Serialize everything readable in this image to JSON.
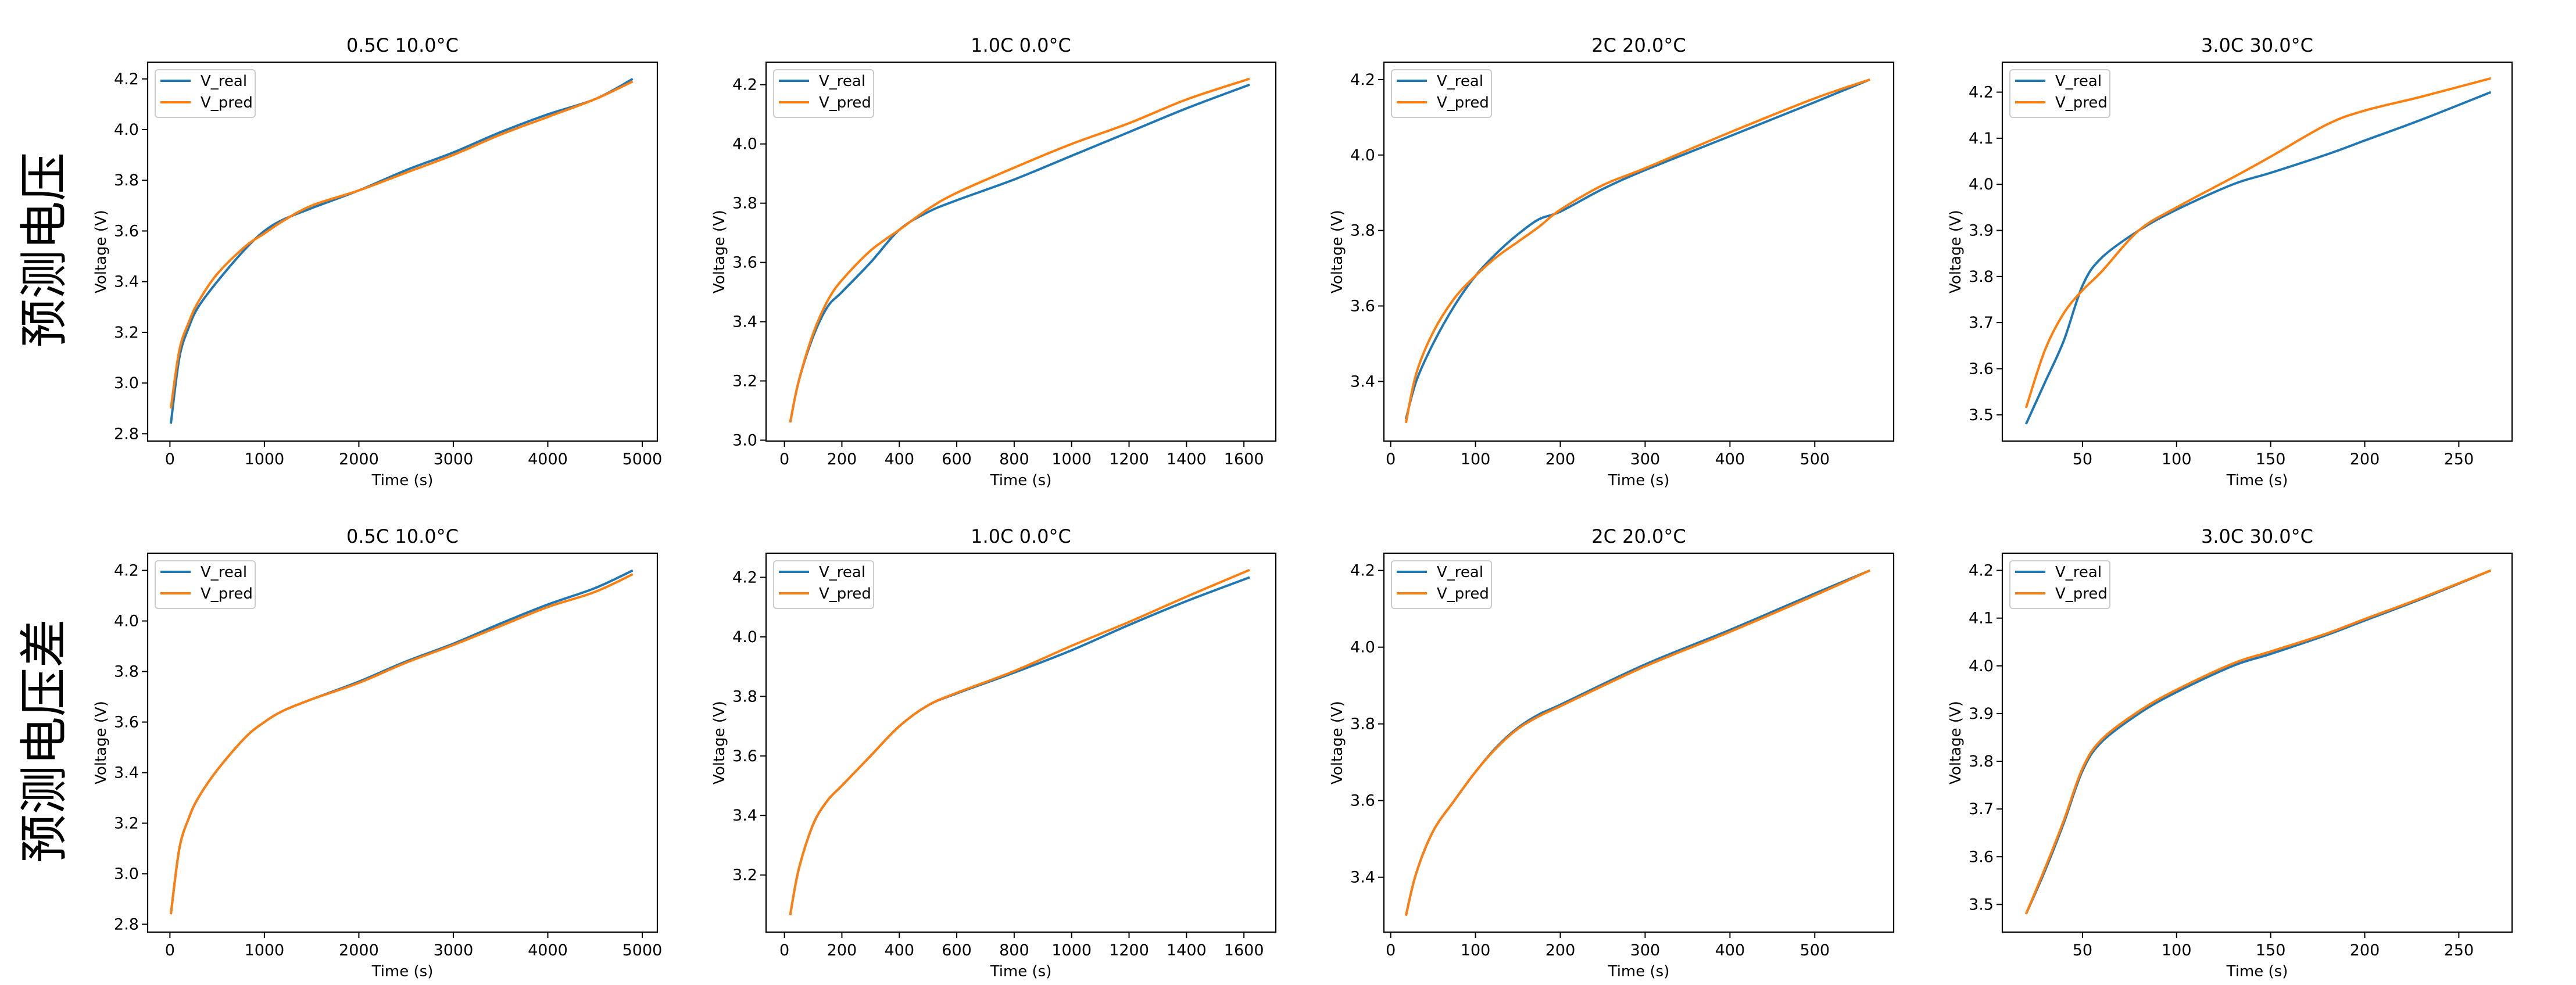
{
  "row_labels": [
    "预测电压",
    "预测电压差"
  ],
  "colors": {
    "V_real": "#1f77b4",
    "V_pred": "#ff7f0e"
  },
  "chart_data": [
    {
      "type": "line",
      "title": "0.5C 10.0°C",
      "xlabel": "Time (s)",
      "ylabel": "Voltage (V)",
      "xlim": [
        -236,
        5160
      ],
      "ylim": [
        2.771,
        4.266
      ],
      "xticks": [
        0,
        1000,
        2000,
        3000,
        4000,
        5000
      ],
      "yticks": [
        "2.8",
        "3.0",
        "3.2",
        "3.4",
        "3.6",
        "3.8",
        "4.0",
        "4.2"
      ],
      "grid": false,
      "legend": "top-left",
      "series": [
        {
          "name": "V_real",
          "x": [
            10,
            100,
            200,
            300,
            500,
            800,
            1000,
            1200,
            1500,
            2000,
            2500,
            3000,
            3500,
            4000,
            4500,
            4900
          ],
          "y": [
            2.84,
            3.1,
            3.22,
            3.3,
            3.4,
            3.53,
            3.6,
            3.645,
            3.69,
            3.76,
            3.84,
            3.91,
            3.99,
            4.06,
            4.12,
            4.2
          ]
        },
        {
          "name": "V_pred",
          "x": [
            10,
            100,
            200,
            300,
            500,
            800,
            1000,
            1200,
            1500,
            2000,
            2500,
            3000,
            3500,
            4000,
            4500,
            4900
          ],
          "y": [
            2.9,
            3.13,
            3.24,
            3.32,
            3.43,
            3.54,
            3.59,
            3.64,
            3.7,
            3.76,
            3.83,
            3.9,
            3.98,
            4.05,
            4.12,
            4.19
          ]
        }
      ]
    },
    {
      "type": "line",
      "title": "1.0C 0.0°C",
      "xlabel": "Time (s)",
      "ylabel": "Voltage (V)",
      "xlim": [
        -64,
        1711
      ],
      "ylim": [
        2.997,
        4.276
      ],
      "xticks": [
        0,
        200,
        400,
        600,
        800,
        1000,
        1200,
        1400,
        1600
      ],
      "yticks": [
        "3.0",
        "3.2",
        "3.4",
        "3.6",
        "3.8",
        "4.0",
        "4.2"
      ],
      "grid": false,
      "legend": "top-left",
      "series": [
        {
          "name": "V_real",
          "x": [
            20,
            50,
            100,
            150,
            200,
            300,
            400,
            500,
            600,
            800,
            1000,
            1200,
            1400,
            1620
          ],
          "y": [
            3.06,
            3.2,
            3.35,
            3.45,
            3.5,
            3.6,
            3.71,
            3.77,
            3.81,
            3.88,
            3.96,
            4.04,
            4.12,
            4.2
          ]
        },
        {
          "name": "V_pred",
          "x": [
            20,
            50,
            100,
            150,
            200,
            300,
            400,
            500,
            600,
            800,
            1000,
            1200,
            1400,
            1620
          ],
          "y": [
            3.06,
            3.2,
            3.36,
            3.47,
            3.54,
            3.64,
            3.71,
            3.78,
            3.835,
            3.92,
            4.0,
            4.07,
            4.15,
            4.22
          ]
        }
      ]
    },
    {
      "type": "line",
      "title": "2C 20.0°C",
      "xlabel": "Time (s)",
      "ylabel": "Voltage (V)",
      "xlim": [
        -8,
        593
      ],
      "ylim": [
        3.242,
        4.246
      ],
      "xticks": [
        0,
        100,
        200,
        300,
        400,
        500
      ],
      "yticks": [
        "3.4",
        "3.6",
        "3.8",
        "4.0",
        "4.2"
      ],
      "grid": false,
      "legend": "top-left",
      "series": [
        {
          "name": "V_real",
          "x": [
            18,
            30,
            50,
            75,
            100,
            125,
            150,
            175,
            200,
            250,
            300,
            400,
            500,
            565
          ],
          "y": [
            3.3,
            3.4,
            3.5,
            3.6,
            3.68,
            3.74,
            3.79,
            3.83,
            3.85,
            3.91,
            3.96,
            4.05,
            4.14,
            4.2
          ]
        },
        {
          "name": "V_pred",
          "x": [
            18,
            30,
            50,
            75,
            100,
            125,
            150,
            175,
            200,
            250,
            300,
            400,
            500,
            565
          ],
          "y": [
            3.29,
            3.42,
            3.53,
            3.62,
            3.68,
            3.73,
            3.77,
            3.81,
            3.855,
            3.92,
            3.965,
            4.06,
            4.15,
            4.2
          ]
        }
      ]
    },
    {
      "type": "line",
      "title": "3.0C 30.0°C",
      "xlabel": "Time (s)",
      "ylabel": "Voltage (V)",
      "xlim": [
        7.4,
        278.3
      ],
      "ylim": [
        3.443,
        4.265
      ],
      "xticks": [
        50,
        100,
        150,
        200,
        250
      ],
      "yticks": [
        "3.5",
        "3.6",
        "3.7",
        "3.8",
        "3.9",
        "4.0",
        "4.1",
        "4.2"
      ],
      "grid": false,
      "legend": "top-left",
      "series": [
        {
          "name": "V_real",
          "x": [
            20,
            30,
            40,
            50,
            60,
            80,
            100,
            130,
            150,
            180,
            200,
            230,
            267
          ],
          "y": [
            3.48,
            3.57,
            3.66,
            3.78,
            3.84,
            3.9,
            3.945,
            4.0,
            4.025,
            4.065,
            4.095,
            4.14,
            4.2
          ]
        },
        {
          "name": "V_pred",
          "x": [
            20,
            30,
            40,
            50,
            60,
            80,
            100,
            130,
            150,
            180,
            200,
            230,
            267
          ],
          "y": [
            3.515,
            3.64,
            3.72,
            3.77,
            3.81,
            3.9,
            3.95,
            4.015,
            4.06,
            4.13,
            4.16,
            4.19,
            4.23
          ]
        }
      ]
    },
    {
      "type": "line",
      "title": "0.5C 10.0°C",
      "xlabel": "Time (s)",
      "ylabel": "Voltage (V)",
      "xlim": [
        -236,
        5160
      ],
      "ylim": [
        2.769,
        4.268
      ],
      "xticks": [
        0,
        1000,
        2000,
        3000,
        4000,
        5000
      ],
      "yticks": [
        "2.8",
        "3.0",
        "3.2",
        "3.4",
        "3.6",
        "3.8",
        "4.0",
        "4.2"
      ],
      "grid": false,
      "legend": "top-left",
      "series": [
        {
          "name": "V_real",
          "x": [
            10,
            100,
            200,
            300,
            500,
            800,
            1000,
            1200,
            1500,
            2000,
            2500,
            3000,
            3500,
            4000,
            4500,
            4900
          ],
          "y": [
            2.84,
            3.1,
            3.22,
            3.3,
            3.41,
            3.54,
            3.6,
            3.645,
            3.69,
            3.76,
            3.84,
            3.91,
            3.99,
            4.065,
            4.13,
            4.2
          ]
        },
        {
          "name": "V_pred",
          "x": [
            10,
            100,
            200,
            300,
            500,
            800,
            1000,
            1200,
            1500,
            2000,
            2500,
            3000,
            3500,
            4000,
            4500,
            4900
          ],
          "y": [
            2.84,
            3.1,
            3.22,
            3.3,
            3.41,
            3.54,
            3.6,
            3.645,
            3.69,
            3.755,
            3.835,
            3.905,
            3.98,
            4.055,
            4.115,
            4.185
          ]
        }
      ]
    },
    {
      "type": "line",
      "title": "1.0C 0.0°C",
      "xlabel": "Time (s)",
      "ylabel": "Voltage (V)",
      "xlim": [
        -64,
        1711
      ],
      "ylim": [
        3.008,
        4.281
      ],
      "xticks": [
        0,
        200,
        400,
        600,
        800,
        1000,
        1200,
        1400,
        1600
      ],
      "yticks": [
        "3.2",
        "3.4",
        "3.6",
        "3.8",
        "4.0",
        "4.2"
      ],
      "grid": false,
      "legend": "top-left",
      "series": [
        {
          "name": "V_real",
          "x": [
            20,
            50,
            100,
            150,
            200,
            300,
            400,
            500,
            600,
            800,
            1000,
            1200,
            1400,
            1620
          ],
          "y": [
            3.065,
            3.22,
            3.37,
            3.45,
            3.5,
            3.6,
            3.7,
            3.77,
            3.81,
            3.88,
            3.955,
            4.04,
            4.12,
            4.2
          ]
        },
        {
          "name": "V_pred",
          "x": [
            20,
            50,
            100,
            150,
            200,
            300,
            400,
            500,
            600,
            800,
            1000,
            1200,
            1400,
            1620
          ],
          "y": [
            3.065,
            3.22,
            3.37,
            3.45,
            3.5,
            3.6,
            3.7,
            3.77,
            3.812,
            3.885,
            3.97,
            4.05,
            4.135,
            4.225
          ]
        }
      ]
    },
    {
      "type": "line",
      "title": "2C 20.0°C",
      "xlabel": "Time (s)",
      "ylabel": "Voltage (V)",
      "xlim": [
        -8,
        593
      ],
      "ylim": [
        3.257,
        4.245
      ],
      "xticks": [
        0,
        100,
        200,
        300,
        400,
        500
      ],
      "yticks": [
        "3.4",
        "3.6",
        "3.8",
        "4.0",
        "4.2"
      ],
      "grid": false,
      "legend": "top-left",
      "series": [
        {
          "name": "V_real",
          "x": [
            18,
            30,
            50,
            75,
            100,
            125,
            150,
            175,
            200,
            300,
            400,
            500,
            565
          ],
          "y": [
            3.3,
            3.41,
            3.52,
            3.6,
            3.675,
            3.74,
            3.79,
            3.825,
            3.85,
            3.955,
            4.045,
            4.14,
            4.2
          ]
        },
        {
          "name": "V_pred",
          "x": [
            18,
            30,
            50,
            75,
            100,
            125,
            150,
            175,
            200,
            300,
            400,
            500,
            565
          ],
          "y": [
            3.3,
            3.41,
            3.52,
            3.6,
            3.675,
            3.738,
            3.787,
            3.82,
            3.846,
            3.95,
            4.04,
            4.135,
            4.2
          ]
        }
      ]
    },
    {
      "type": "line",
      "title": "3.0C 30.0°C",
      "xlabel": "Time (s)",
      "ylabel": "Voltage (V)",
      "xlim": [
        7.4,
        278.3
      ],
      "ylim": [
        3.442,
        4.236
      ],
      "xticks": [
        50,
        100,
        150,
        200,
        250
      ],
      "yticks": [
        "3.5",
        "3.6",
        "3.7",
        "3.8",
        "3.9",
        "4.0",
        "4.1",
        "4.2"
      ],
      "grid": false,
      "legend": "top-left",
      "series": [
        {
          "name": "V_real",
          "x": [
            20,
            30,
            40,
            50,
            60,
            80,
            100,
            130,
            150,
            180,
            200,
            230,
            267
          ],
          "y": [
            3.48,
            3.57,
            3.67,
            3.78,
            3.84,
            3.9,
            3.945,
            4.0,
            4.025,
            4.065,
            4.095,
            4.14,
            4.2
          ]
        },
        {
          "name": "V_pred",
          "x": [
            20,
            30,
            40,
            50,
            60,
            80,
            100,
            130,
            150,
            180,
            200,
            230,
            267
          ],
          "y": [
            3.48,
            3.575,
            3.675,
            3.785,
            3.845,
            3.905,
            3.95,
            4.005,
            4.03,
            4.068,
            4.098,
            4.142,
            4.2
          ]
        }
      ]
    }
  ]
}
